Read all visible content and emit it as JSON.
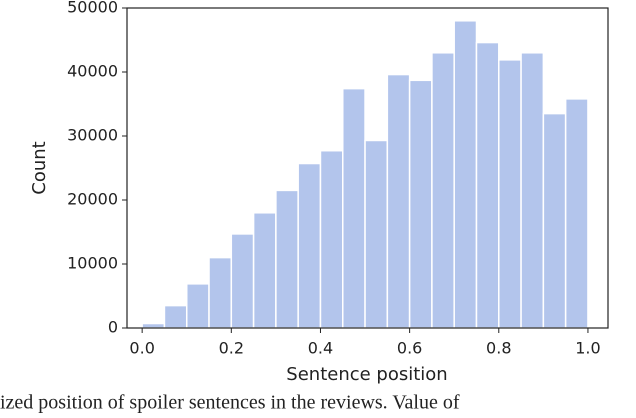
{
  "chart_data": {
    "type": "histogram",
    "xlabel": "Sentence position",
    "ylabel": "Count",
    "bins": [
      0,
      0.05,
      0.1,
      0.15,
      0.2,
      0.25,
      0.3,
      0.35,
      0.4,
      0.45,
      0.5,
      0.55,
      0.6,
      0.65,
      0.7,
      0.75,
      0.8,
      0.85,
      0.9,
      0.95,
      1.0
    ],
    "values": [
      700,
      3500,
      6900,
      11000,
      14700,
      18000,
      21500,
      25700,
      27700,
      37400,
      29300,
      39600,
      38700,
      43000,
      48000,
      44600,
      41900,
      43000,
      33500,
      35800
    ],
    "color": "#b3c5ec",
    "xlim": [
      -0.034,
      1.045
    ],
    "xticks": [
      {
        "value": 0,
        "label": "0.0"
      },
      0.2,
      0.4,
      0.6,
      0.8,
      {
        "value": 1,
        "label": "1.0"
      }
    ],
    "ylim": [
      0,
      50000
    ],
    "yticks": [
      0,
      10000,
      20000,
      30000,
      40000,
      50000
    ]
  },
  "caption": "ized position of spoiler sentences in the reviews. Value of"
}
